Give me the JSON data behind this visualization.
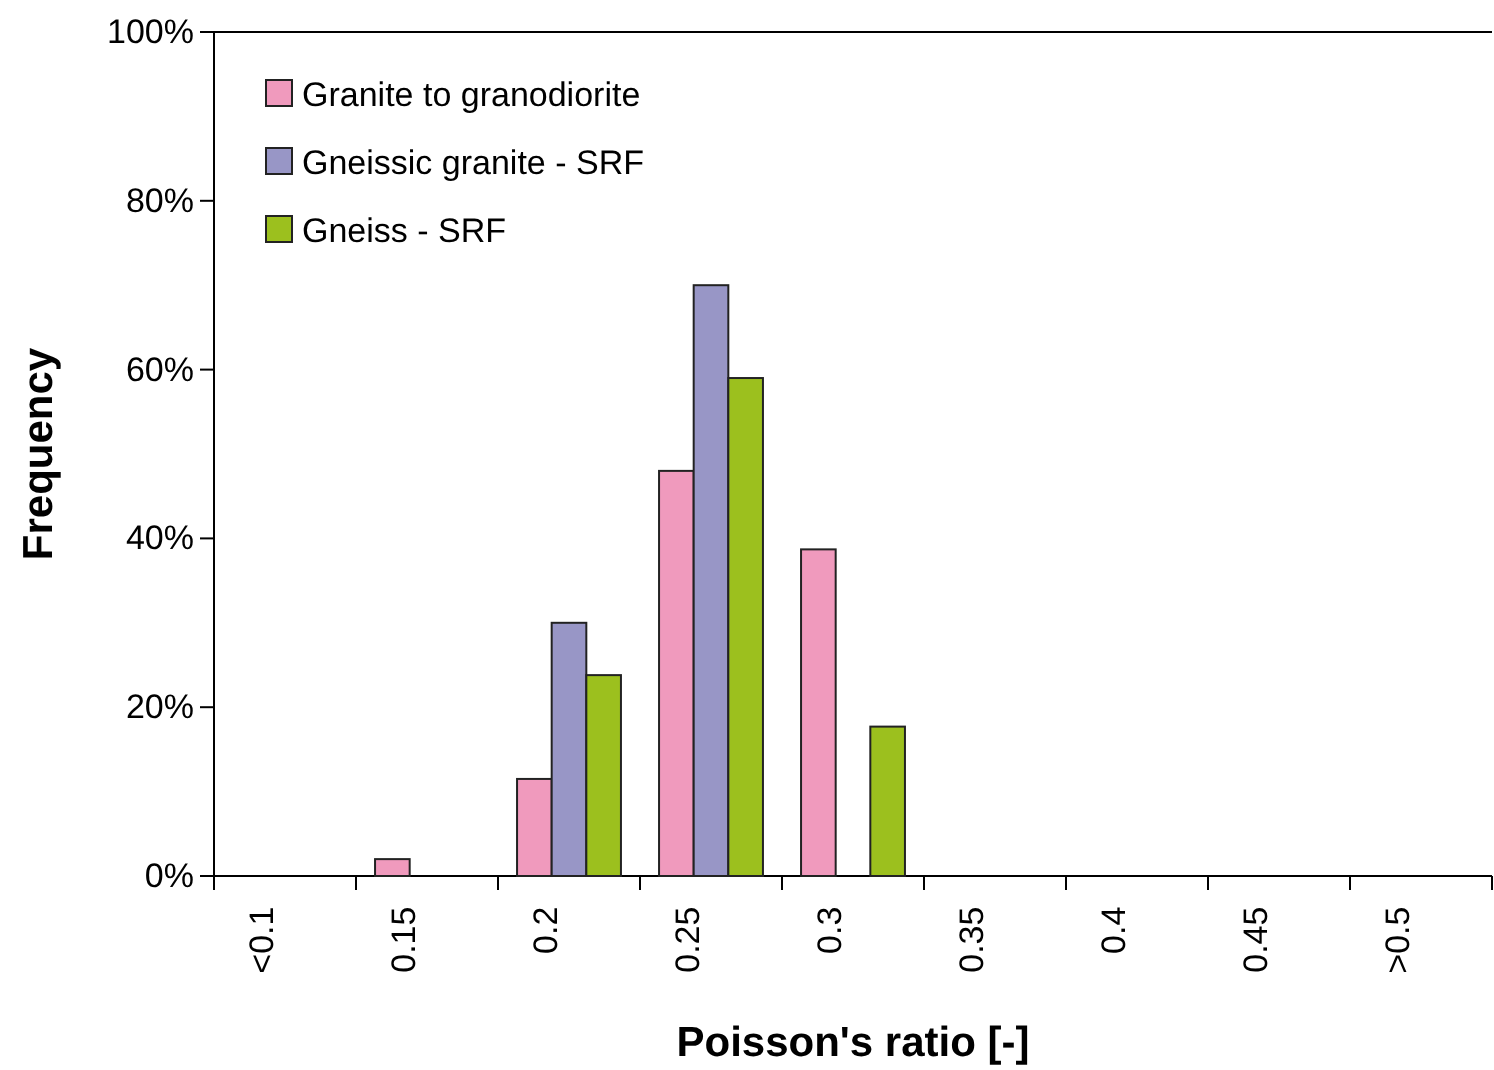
{
  "chart_data": {
    "type": "bar",
    "xlabel": "Poisson's ratio [-]",
    "ylabel": "Frequency",
    "categories": [
      "<0.1",
      "0.15",
      "0.2",
      "0.25",
      "0.3",
      "0.35",
      "0.4",
      "0.45",
      ">0.5"
    ],
    "series": [
      {
        "name": "Granite to granodiorite",
        "color": "#f09abd",
        "values": [
          0,
          2,
          11.5,
          48,
          38.7,
          0,
          0,
          0,
          0
        ]
      },
      {
        "name": "Gneissic granite - SRF",
        "color": "#9896c6",
        "values": [
          0,
          0,
          30,
          70,
          0,
          0,
          0,
          0,
          0
        ]
      },
      {
        "name": "Gneiss - SRF",
        "color": "#9cc01e",
        "values": [
          0,
          0,
          23.8,
          59,
          17.7,
          0,
          0,
          0,
          0
        ]
      }
    ],
    "ylim": [
      0,
      100
    ],
    "yticks": [
      {
        "value": 0,
        "label": "0%"
      },
      {
        "value": 20,
        "label": "20%"
      },
      {
        "value": 40,
        "label": "40%"
      },
      {
        "value": 60,
        "label": "60%"
      },
      {
        "value": 80,
        "label": "80%"
      },
      {
        "value": 100,
        "label": "100%"
      }
    ],
    "grid": false,
    "legend": "top left"
  }
}
